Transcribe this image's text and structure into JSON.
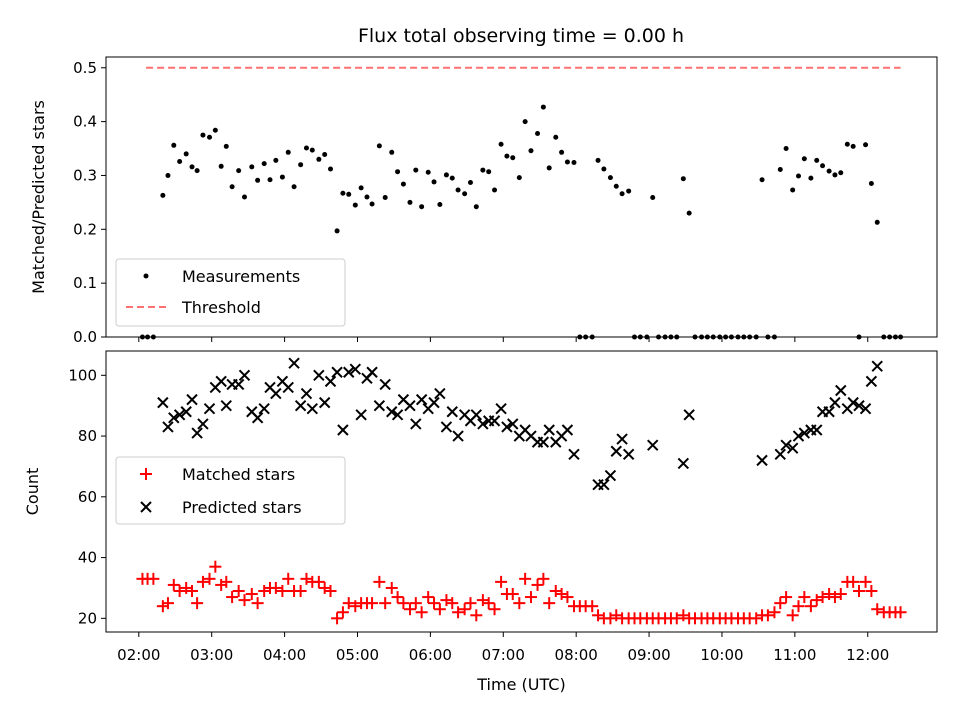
{
  "chart_data": [
    {
      "type": "scatter",
      "title": "Flux total observing time = 0.00 h",
      "xlabel": "",
      "ylabel": "Matched/Predicted stars",
      "xlim": [
        1.55,
        12.95
      ],
      "ylim": [
        0.0,
        0.52
      ],
      "yticks": [
        "0.0",
        "0.1",
        "0.2",
        "0.3",
        "0.4",
        "0.5"
      ],
      "legend_position": "lower-left",
      "threshold": {
        "name": "Threshold",
        "value": 0.5,
        "x_range": [
          2.1,
          12.45
        ],
        "color": "#ff7070"
      },
      "series": [
        {
          "name": "Measurements",
          "color": "#000000",
          "x": [
            2.05,
            2.12,
            2.2,
            2.33,
            2.4,
            2.48,
            2.56,
            2.65,
            2.73,
            2.8,
            2.88,
            2.97,
            3.05,
            3.13,
            3.2,
            3.28,
            3.37,
            3.45,
            3.55,
            3.63,
            3.72,
            3.8,
            3.88,
            3.97,
            4.05,
            4.13,
            4.22,
            4.3,
            4.38,
            4.47,
            4.55,
            4.63,
            4.72,
            4.8,
            4.88,
            4.97,
            5.05,
            5.13,
            5.2,
            5.3,
            5.38,
            5.47,
            5.55,
            5.63,
            5.72,
            5.8,
            5.88,
            5.97,
            6.05,
            6.13,
            6.22,
            6.3,
            6.38,
            6.47,
            6.55,
            6.63,
            6.72,
            6.8,
            6.88,
            6.97,
            7.05,
            7.13,
            7.22,
            7.3,
            7.38,
            7.47,
            7.55,
            7.63,
            7.72,
            7.8,
            7.88,
            7.97,
            8.05,
            8.13,
            8.22,
            8.3,
            8.38,
            8.47,
            8.55,
            8.63,
            8.72,
            8.8,
            8.88,
            8.97,
            9.05,
            9.13,
            9.22,
            9.3,
            9.38,
            9.47,
            9.55,
            9.63,
            9.72,
            9.8,
            9.88,
            9.97,
            10.05,
            10.13,
            10.22,
            10.3,
            10.38,
            10.47,
            10.55,
            10.63,
            10.72,
            10.8,
            10.88,
            10.97,
            11.05,
            11.13,
            11.22,
            11.3,
            11.38,
            11.47,
            11.55,
            11.63,
            11.72,
            11.8,
            11.88,
            11.97,
            12.05,
            12.13,
            12.22,
            12.3,
            12.38,
            12.45
          ],
          "y": [
            0.0,
            0.0,
            0.0,
            0.263,
            0.3,
            0.356,
            0.326,
            0.34,
            0.316,
            0.309,
            0.375,
            0.371,
            0.384,
            0.317,
            0.354,
            0.279,
            0.309,
            0.26,
            0.316,
            0.291,
            0.322,
            0.292,
            0.328,
            0.297,
            0.343,
            0.279,
            0.32,
            0.351,
            0.347,
            0.33,
            0.339,
            0.312,
            0.197,
            0.267,
            0.265,
            0.245,
            0.277,
            0.26,
            0.247,
            0.355,
            0.259,
            0.343,
            0.307,
            0.284,
            0.25,
            0.31,
            0.242,
            0.306,
            0.288,
            0.246,
            0.301,
            0.295,
            0.273,
            0.266,
            0.287,
            0.242,
            0.31,
            0.307,
            0.273,
            0.358,
            0.336,
            0.333,
            0.296,
            0.4,
            0.346,
            0.378,
            0.427,
            0.314,
            0.371,
            0.343,
            0.325,
            0.324,
            0.0,
            0.0,
            0.0,
            0.328,
            0.312,
            0.296,
            0.28,
            0.266,
            0.271,
            0.0,
            0.0,
            0.0,
            0.259,
            0.0,
            0.0,
            0.0,
            0.0,
            0.294,
            0.23,
            0.0,
            0.0,
            0.0,
            0.0,
            0.0,
            0.0,
            0.0,
            0.0,
            0.0,
            0.0,
            0.0,
            0.292,
            0.0,
            0.0,
            0.311,
            0.35,
            0.273,
            0.299,
            0.331,
            0.295,
            0.328,
            0.318,
            0.308,
            0.301,
            0.305,
            0.358,
            0.354,
            0.0,
            0.357,
            0.285,
            0.213,
            0.0,
            0.0,
            0.0,
            0.0
          ]
        }
      ]
    },
    {
      "type": "scatter",
      "title": "",
      "xlabel": "Time (UTC)",
      "ylabel": "Count",
      "xlim": [
        1.55,
        12.95
      ],
      "ylim": [
        15.5,
        108
      ],
      "yticks": [
        "20",
        "40",
        "60",
        "80",
        "100"
      ],
      "xticks": [
        "02:00",
        "03:00",
        "04:00",
        "05:00",
        "06:00",
        "07:00",
        "08:00",
        "09:00",
        "10:00",
        "11:00",
        "12:00"
      ],
      "legend_position": "center-left",
      "series": [
        {
          "name": "Matched stars",
          "marker": "plus",
          "color": "#ff0000",
          "x": [
            2.05,
            2.12,
            2.2,
            2.33,
            2.4,
            2.48,
            2.56,
            2.65,
            2.73,
            2.8,
            2.88,
            2.97,
            3.05,
            3.13,
            3.2,
            3.28,
            3.37,
            3.45,
            3.55,
            3.63,
            3.72,
            3.8,
            3.88,
            3.97,
            4.05,
            4.13,
            4.22,
            4.3,
            4.38,
            4.47,
            4.55,
            4.63,
            4.72,
            4.8,
            4.88,
            4.97,
            5.05,
            5.13,
            5.2,
            5.3,
            5.38,
            5.47,
            5.55,
            5.63,
            5.72,
            5.8,
            5.88,
            5.97,
            6.05,
            6.13,
            6.22,
            6.3,
            6.38,
            6.47,
            6.55,
            6.63,
            6.72,
            6.8,
            6.88,
            6.97,
            7.05,
            7.13,
            7.22,
            7.3,
            7.38,
            7.47,
            7.55,
            7.63,
            7.72,
            7.8,
            7.88,
            7.97,
            8.05,
            8.13,
            8.22,
            8.3,
            8.38,
            8.47,
            8.55,
            8.63,
            8.72,
            8.8,
            8.88,
            8.97,
            9.05,
            9.13,
            9.22,
            9.3,
            9.38,
            9.47,
            9.55,
            9.63,
            9.72,
            9.8,
            9.88,
            9.97,
            10.05,
            10.13,
            10.22,
            10.3,
            10.38,
            10.47,
            10.55,
            10.63,
            10.72,
            10.8,
            10.88,
            10.97,
            11.05,
            11.13,
            11.22,
            11.3,
            11.38,
            11.47,
            11.55,
            11.63,
            11.72,
            11.8,
            11.88,
            11.97,
            12.05,
            12.13,
            12.22,
            12.3,
            12.38,
            12.45
          ],
          "y": [
            33,
            33,
            33,
            24,
            25,
            31,
            29,
            30,
            29,
            25,
            32,
            33,
            37,
            31,
            32,
            27,
            29,
            26,
            28,
            25,
            29,
            30,
            30,
            29,
            33,
            29,
            29,
            33,
            32,
            32,
            30,
            29,
            20,
            22,
            25,
            24,
            25,
            25,
            25,
            32,
            25,
            30,
            27,
            25,
            23,
            25,
            22,
            27,
            25,
            23,
            26,
            25,
            22,
            23,
            25,
            21,
            26,
            25,
            23,
            32,
            28,
            28,
            25,
            33,
            27,
            31,
            33,
            25,
            29,
            28,
            27,
            24,
            24,
            24,
            24,
            21,
            20,
            20,
            21,
            20,
            20,
            20,
            20,
            20,
            20,
            20,
            20,
            20,
            20,
            21,
            20,
            20,
            20,
            20,
            20,
            20,
            20,
            20,
            20,
            20,
            20,
            20,
            21,
            21,
            22,
            25,
            27,
            21,
            24,
            27,
            24,
            26,
            27,
            28,
            27,
            28,
            32,
            32,
            29,
            32,
            29,
            23,
            22,
            22,
            22,
            22
          ]
        },
        {
          "name": "Predicted stars",
          "marker": "cross",
          "color": "#000000",
          "x": [
            2.33,
            2.4,
            2.48,
            2.56,
            2.65,
            2.73,
            2.8,
            2.88,
            2.97,
            3.05,
            3.13,
            3.2,
            3.28,
            3.37,
            3.45,
            3.55,
            3.63,
            3.72,
            3.8,
            3.88,
            3.97,
            4.05,
            4.13,
            4.22,
            4.3,
            4.38,
            4.47,
            4.55,
            4.63,
            4.72,
            4.8,
            4.88,
            4.97,
            5.05,
            5.13,
            5.2,
            5.3,
            5.38,
            5.47,
            5.55,
            5.63,
            5.72,
            5.8,
            5.88,
            5.97,
            6.05,
            6.13,
            6.22,
            6.3,
            6.38,
            6.47,
            6.55,
            6.63,
            6.72,
            6.8,
            6.88,
            6.97,
            7.05,
            7.13,
            7.22,
            7.3,
            7.38,
            7.47,
            7.55,
            7.63,
            7.72,
            7.8,
            7.88,
            7.97,
            8.3,
            8.38,
            8.47,
            8.55,
            8.63,
            8.72,
            9.05,
            9.47,
            9.55,
            10.55,
            10.8,
            10.88,
            10.97,
            11.05,
            11.13,
            11.22,
            11.3,
            11.38,
            11.47,
            11.55,
            11.63,
            11.72,
            11.8,
            11.88,
            11.97,
            12.05,
            12.13
          ],
          "y": [
            91,
            83,
            86,
            87,
            88,
            92,
            81,
            84,
            89,
            96,
            98,
            90,
            97,
            97,
            100,
            88,
            86,
            89,
            96,
            94,
            98,
            96,
            104,
            90,
            94,
            89,
            100,
            91,
            98,
            101,
            82,
            101,
            102,
            87,
            99,
            101,
            90,
            97,
            88,
            87,
            92,
            90,
            84,
            92,
            89,
            91,
            94,
            83,
            88,
            80,
            87,
            85,
            87,
            84,
            85,
            85,
            89,
            83,
            84,
            80,
            82,
            80,
            78,
            78,
            82,
            78,
            80,
            82,
            74,
            64,
            64,
            67,
            75,
            79,
            74,
            77,
            71,
            87,
            72,
            74,
            77,
            76,
            80,
            81,
            82,
            82,
            88,
            88,
            91,
            95,
            89,
            91,
            90,
            89,
            98,
            103
          ]
        }
      ]
    }
  ]
}
